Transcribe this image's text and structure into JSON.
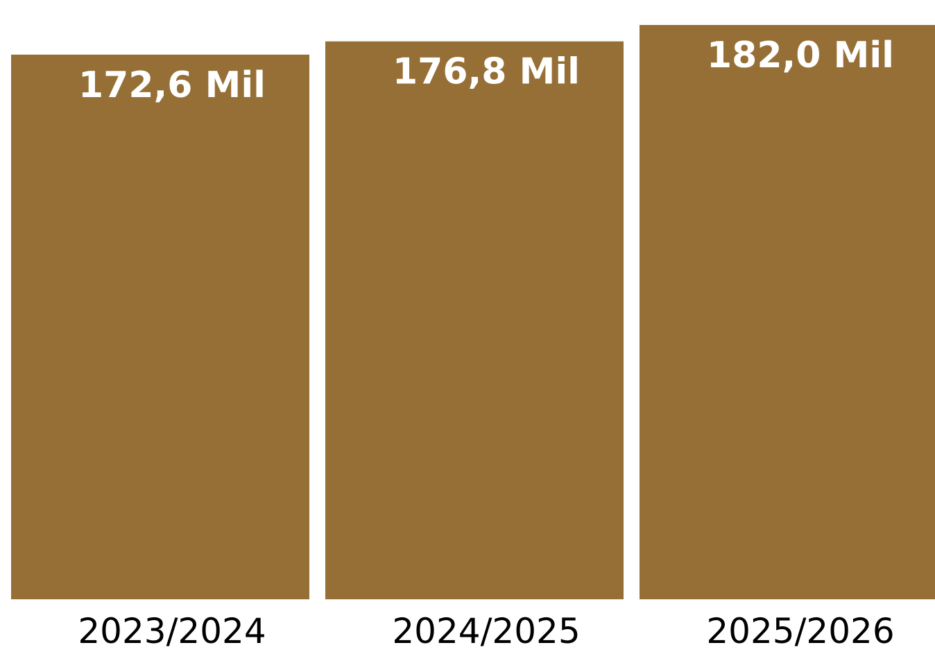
{
  "chart_data": {
    "type": "bar",
    "categories": [
      "2023/2024",
      "2024/2025",
      "2025/2026"
    ],
    "values": [
      172.6,
      176.8,
      182.0
    ],
    "data_labels": [
      "172,6 Mil",
      "176,8 Mil",
      "182,0 Mil"
    ],
    "title": "",
    "xlabel": "",
    "ylabel": "",
    "ylim": [
      0,
      190
    ],
    "grid": false,
    "legend": "none",
    "bar_color": "#966F36",
    "label_color": "#FFFFFF",
    "tick_color": "#000000"
  }
}
